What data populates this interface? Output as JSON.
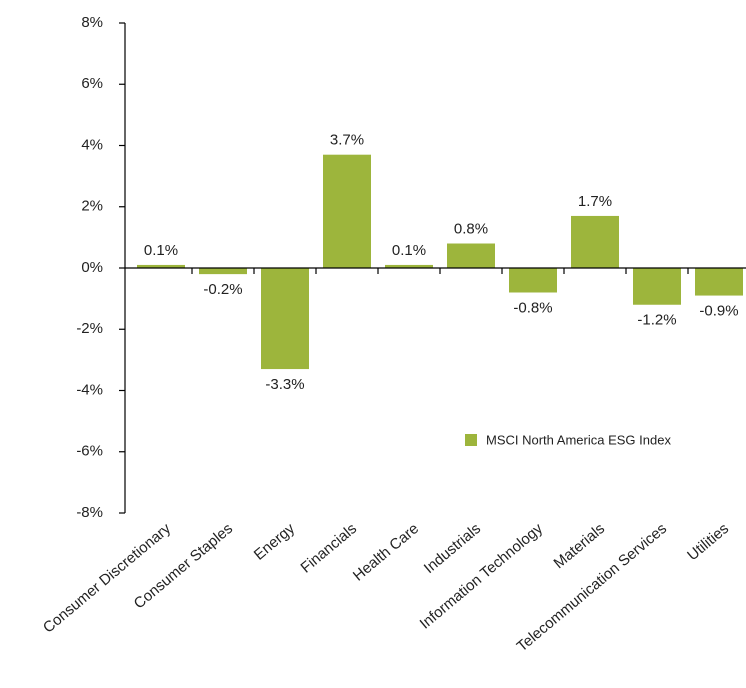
{
  "chart_data": {
    "type": "bar",
    "categories": [
      "Consumer Discretionary",
      "Consumer Staples",
      "Energy",
      "Financials",
      "Health Care",
      "Industrials",
      "Information Technology",
      "Materials",
      "Telecommunication Services",
      "Utilities"
    ],
    "series": [
      {
        "name": "MSCI North America ESG Index",
        "color": "#9db53c",
        "values": [
          0.1,
          -0.2,
          -3.3,
          3.7,
          0.1,
          0.8,
          -0.8,
          1.7,
          -1.2,
          -0.9
        ],
        "value_labels": [
          "0.1%",
          "-0.2%",
          "-3.3%",
          "3.7%",
          "0.1%",
          "0.8%",
          "-0.8%",
          "1.7%",
          "-1.2%",
          "-0.9%"
        ]
      }
    ],
    "ylim": [
      -8,
      8
    ],
    "yticks": [
      {
        "value": -8,
        "label": "-8%"
      },
      {
        "value": -6,
        "label": "-6%"
      },
      {
        "value": -4,
        "label": "-4%"
      },
      {
        "value": -2,
        "label": "-2%"
      },
      {
        "value": 0,
        "label": "0%"
      },
      {
        "value": 2,
        "label": "2%"
      },
      {
        "value": 4,
        "label": "4%"
      },
      {
        "value": 6,
        "label": "6%"
      },
      {
        "value": 8,
        "label": "8%"
      }
    ]
  }
}
